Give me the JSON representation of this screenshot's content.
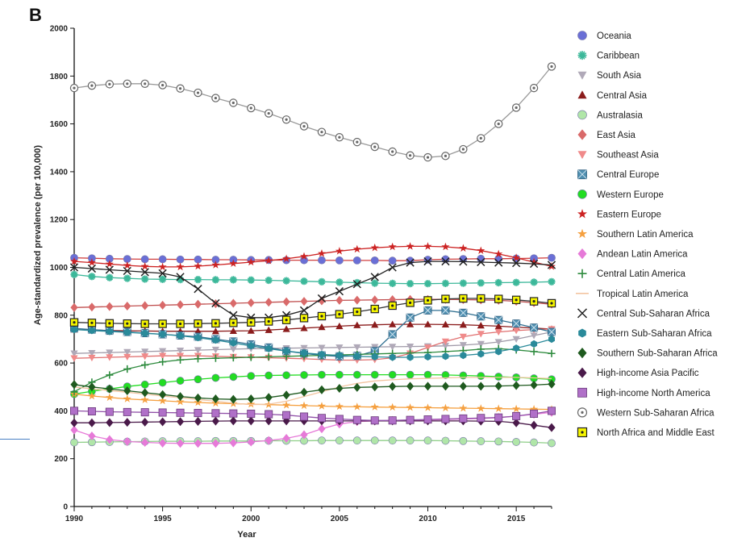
{
  "panel_label": "B",
  "chart_data": {
    "type": "line",
    "title": "",
    "xlabel": "Year",
    "ylabel": "Age-standardized prevalence (per 100,000)",
    "xlim": [
      1990,
      2017
    ],
    "ylim": [
      0,
      2000
    ],
    "x_ticks": [
      1990,
      1995,
      2000,
      2005,
      2010,
      2015
    ],
    "y_ticks": [
      0,
      200,
      400,
      600,
      800,
      1000,
      1200,
      1400,
      1600,
      1800,
      2000
    ],
    "grid": false,
    "legend_position": "right",
    "years": [
      1990,
      1991,
      1992,
      1993,
      1994,
      1995,
      1996,
      1997,
      1998,
      1999,
      2000,
      2001,
      2002,
      2003,
      2004,
      2005,
      2006,
      2007,
      2008,
      2009,
      2010,
      2011,
      2012,
      2013,
      2014,
      2015,
      2016,
      2017
    ],
    "series": [
      {
        "name": "Oceania",
        "marker": "circle",
        "color": "#6a6fd6",
        "line": "#d04040",
        "values": [
          1040,
          1038,
          1036,
          1035,
          1034,
          1034,
          1033,
          1033,
          1032,
          1032,
          1031,
          1031,
          1030,
          1030,
          1030,
          1029,
          1029,
          1029,
          1028,
          1028,
          1032,
          1034,
          1035,
          1036,
          1036,
          1037,
          1038,
          1040
        ]
      },
      {
        "name": "Caribbean",
        "marker": "star6",
        "color": "#3cb89a",
        "line": "#3cb89a",
        "values": [
          970,
          962,
          957,
          954,
          951,
          950,
          949,
          949,
          948,
          948,
          947,
          946,
          944,
          942,
          940,
          938,
          936,
          934,
          933,
          932,
          932,
          933,
          934,
          935,
          936,
          937,
          938,
          940
        ]
      },
      {
        "name": "South Asia",
        "marker": "tri-down",
        "color": "#b0a9b8",
        "line": "#a09aa8",
        "values": [
          640,
          642,
          644,
          646,
          648,
          650,
          652,
          654,
          656,
          658,
          660,
          661,
          662,
          663,
          664,
          665,
          666,
          667,
          668,
          669,
          670,
          672,
          675,
          680,
          688,
          700,
          715,
          730
        ]
      },
      {
        "name": "Central Asia",
        "marker": "tri-up",
        "color": "#8b1c1c",
        "line": "#8b1c1c",
        "values": [
          740,
          738,
          736,
          735,
          734,
          733,
          733,
          733,
          733,
          734,
          735,
          738,
          742,
          746,
          750,
          754,
          758,
          760,
          762,
          762,
          762,
          761,
          760,
          757,
          754,
          750,
          746,
          742
        ]
      },
      {
        "name": "Australasia",
        "marker": "circle",
        "color": "#b0e6a8",
        "line": "#8fcf88",
        "values": [
          268,
          269,
          270,
          271,
          272,
          273,
          273,
          273,
          274,
          274,
          274,
          275,
          275,
          275,
          276,
          276,
          276,
          276,
          276,
          276,
          276,
          275,
          274,
          273,
          272,
          270,
          268,
          265
        ]
      },
      {
        "name": "East Asia",
        "marker": "diamond",
        "color": "#d96a6a",
        "line": "#c05050",
        "values": [
          832,
          834,
          836,
          838,
          840,
          842,
          844,
          846,
          848,
          850,
          852,
          854,
          856,
          858,
          860,
          862,
          863,
          864,
          865,
          866,
          866,
          866,
          865,
          864,
          862,
          858,
          852,
          846
        ]
      },
      {
        "name": "Southeast Asia",
        "marker": "tri-down",
        "color": "#f08a8a",
        "line": "#e07070",
        "values": [
          620,
          622,
          624,
          626,
          628,
          630,
          630,
          630,
          628,
          626,
          624,
          622,
          620,
          618,
          615,
          612,
          612,
          614,
          622,
          640,
          665,
          690,
          710,
          722,
          730,
          736,
          740,
          742
        ]
      },
      {
        "name": "Central Europe",
        "marker": "square-x",
        "color": "#4f8fb0",
        "line": "#2f6f90",
        "values": [
          745,
          740,
          735,
          730,
          725,
          720,
          715,
          710,
          700,
          690,
          678,
          665,
          650,
          640,
          632,
          628,
          630,
          650,
          720,
          790,
          820,
          820,
          810,
          795,
          780,
          765,
          748,
          730
        ]
      },
      {
        "name": "Western Europe",
        "marker": "circle",
        "color": "#22dd22",
        "line": "#22dd22",
        "values": [
          470,
          482,
          492,
          502,
          510,
          518,
          526,
          532,
          538,
          542,
          546,
          548,
          549,
          550,
          551,
          551,
          551,
          551,
          551,
          551,
          551,
          550,
          548,
          546,
          543,
          540,
          536,
          532
        ]
      },
      {
        "name": "Eastern Europe",
        "marker": "star5",
        "color": "#cc2222",
        "line": "#cc2222",
        "values": [
          1025,
          1020,
          1014,
          1008,
          1004,
          1002,
          1002,
          1005,
          1010,
          1016,
          1022,
          1028,
          1036,
          1046,
          1058,
          1068,
          1076,
          1082,
          1086,
          1088,
          1088,
          1086,
          1080,
          1070,
          1056,
          1040,
          1022,
          1004
        ]
      },
      {
        "name": "Southern Latin America",
        "marker": "star5",
        "color": "#f5a040",
        "line": "#f5a040",
        "values": [
          470,
          462,
          456,
          450,
          446,
          442,
          438,
          435,
          432,
          430,
          428,
          426,
          424,
          422,
          420,
          418,
          417,
          416,
          415,
          414,
          413,
          412,
          411,
          410,
          409,
          408,
          407,
          406
        ]
      },
      {
        "name": "Andean Latin America",
        "marker": "diamond",
        "color": "#e67ad8",
        "line": "#e67ad8",
        "values": [
          320,
          295,
          280,
          272,
          268,
          265,
          264,
          264,
          264,
          266,
          270,
          276,
          285,
          300,
          325,
          345,
          355,
          358,
          360,
          361,
          362,
          364,
          366,
          368,
          372,
          378,
          386,
          394
        ]
      },
      {
        "name": "Central Latin America",
        "marker": "plus",
        "color": "#2e8b3e",
        "line": "#2e8b3e",
        "values": [
          480,
          520,
          550,
          575,
          592,
          605,
          613,
          618,
          620,
          622,
          624,
          626,
          628,
          630,
          632,
          634,
          636,
          638,
          640,
          642,
          644,
          648,
          652,
          658,
          660,
          655,
          648,
          640
        ]
      },
      {
        "name": "Tropical Latin America",
        "marker": "none",
        "color": "#f2c4a0",
        "line": "#f2c4a0",
        "values": [
          500,
          492,
          485,
          478,
          470,
          462,
          455,
          448,
          440,
          432,
          426,
          428,
          440,
          460,
          480,
          500,
          515,
          525,
          530,
          534,
          536,
          538,
          540,
          540,
          540,
          540,
          538,
          535
        ]
      },
      {
        "name": "Central Sub-Saharan Africa",
        "marker": "x",
        "color": "#222222",
        "line": "#222222",
        "values": [
          1000,
          995,
          990,
          985,
          980,
          975,
          960,
          910,
          850,
          800,
          790,
          790,
          800,
          820,
          870,
          900,
          930,
          960,
          1000,
          1020,
          1025,
          1025,
          1024,
          1022,
          1020,
          1018,
          1015,
          1010
        ]
      },
      {
        "name": "Eastern Sub-Saharan Africa",
        "marker": "hexagon",
        "color": "#2a8a9a",
        "line": "#2a8a9a",
        "values": [
          740,
          736,
          732,
          728,
          724,
          720,
          714,
          706,
          696,
          684,
          672,
          660,
          650,
          642,
          636,
          632,
          628,
          626,
          624,
          624,
          626,
          628,
          632,
          638,
          648,
          662,
          680,
          700
        ]
      },
      {
        "name": "Southern Sub-Saharan Africa",
        "marker": "diamond",
        "color": "#1f5a1f",
        "line": "#1f5a1f",
        "values": [
          510,
          500,
          492,
          484,
          476,
          468,
          460,
          454,
          450,
          448,
          450,
          456,
          466,
          478,
          488,
          494,
          498,
          500,
          502,
          503,
          503,
          503,
          503,
          503,
          504,
          506,
          508,
          512
        ]
      },
      {
        "name": "High-income Asia Pacific",
        "marker": "diamond",
        "color": "#4a1a4a",
        "line": "#4a1a4a",
        "values": [
          350,
          350,
          351,
          352,
          353,
          354,
          355,
          356,
          357,
          358,
          358,
          358,
          358,
          358,
          358,
          358,
          358,
          358,
          358,
          358,
          358,
          358,
          358,
          357,
          356,
          350,
          340,
          330
        ]
      },
      {
        "name": "High-income North America",
        "marker": "square",
        "color": "#b070c8",
        "line": "#9050a8",
        "values": [
          400,
          398,
          396,
          395,
          394,
          393,
          392,
          391,
          390,
          389,
          388,
          386,
          382,
          376,
          370,
          366,
          362,
          360,
          360,
          362,
          364,
          366,
          368,
          370,
          372,
          378,
          388,
          400
        ]
      },
      {
        "name": "Western Sub-Saharan Africa",
        "marker": "circle-dot",
        "color": "#666666",
        "line": "#999999",
        "values": [
          1750,
          1760,
          1766,
          1768,
          1768,
          1762,
          1748,
          1730,
          1708,
          1688,
          1666,
          1644,
          1618,
          1590,
          1566,
          1544,
          1524,
          1504,
          1484,
          1468,
          1460,
          1466,
          1494,
          1540,
          1600,
          1668,
          1750,
          1840
        ]
      },
      {
        "name": "North Africa and Middle East",
        "marker": "square-dot",
        "color": "#f5f500",
        "line": "#333333",
        "values": [
          770,
          768,
          766,
          765,
          764,
          764,
          764,
          765,
          766,
          768,
          770,
          774,
          780,
          788,
          796,
          804,
          814,
          826,
          840,
          852,
          862,
          868,
          870,
          870,
          868,
          864,
          858,
          850
        ]
      }
    ]
  }
}
